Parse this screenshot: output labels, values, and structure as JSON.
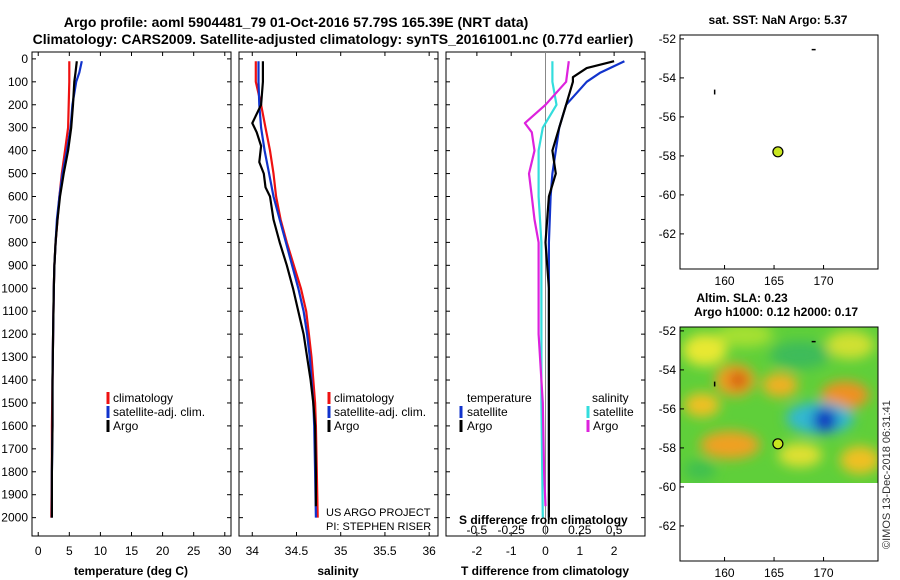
{
  "header": {
    "title_line1": "Argo profile: aoml 5904481_79 01-Oct-2016 57.79S 165.39E (NRT data)",
    "title_line2": "Climatology: CARS2009. Satellite-adjusted climatology: synTS_20161001.nc (0.77d earlier)"
  },
  "colors": {
    "climatology": "#ee1111",
    "satellite": "#1133cc",
    "argo": "#000000",
    "salinity_satellite": "#33dddd",
    "salinity_argo": "#dd22dd",
    "marker": "#c8e620"
  },
  "depth_ticks": [
    "0",
    "100",
    "200",
    "300",
    "400",
    "500",
    "600",
    "700",
    "800",
    "900",
    "1000",
    "1100",
    "1200",
    "1300",
    "1400",
    "1500",
    "1600",
    "1700",
    "1800",
    "1900",
    "2000"
  ],
  "chart_data": [
    {
      "type": "line",
      "name": "temperature-profile",
      "xlabel": "temperature (deg C)",
      "xlim": [
        -1,
        31
      ],
      "xticks": [
        0,
        5,
        10,
        15,
        20,
        25,
        30
      ],
      "xtick_labels": [
        "0",
        "5",
        "10",
        "15",
        "20",
        "25",
        "30"
      ],
      "ylim": [
        2080,
        -30
      ],
      "ylabel": "depth",
      "legend": [
        "climatology",
        "satellite-adj. clim.",
        "Argo"
      ],
      "series": [
        {
          "name": "climatology",
          "color": "#ee1111",
          "points": [
            [
              5.0,
              10
            ],
            [
              5.0,
              100
            ],
            [
              4.9,
              200
            ],
            [
              4.8,
              300
            ],
            [
              4.3,
              400
            ],
            [
              3.8,
              500
            ],
            [
              3.4,
              600
            ],
            [
              3.1,
              700
            ],
            [
              2.8,
              800
            ],
            [
              2.6,
              900
            ],
            [
              2.5,
              1000
            ],
            [
              2.4,
              1200
            ],
            [
              2.3,
              1400
            ],
            [
              2.2,
              1600
            ],
            [
              2.2,
              1800
            ],
            [
              2.1,
              2000
            ]
          ]
        },
        {
          "name": "satellite-adj. clim.",
          "color": "#1133cc",
          "points": [
            [
              7.0,
              10
            ],
            [
              6.6,
              60
            ],
            [
              6.1,
              100
            ],
            [
              5.5,
              200
            ],
            [
              5.2,
              300
            ],
            [
              4.6,
              400
            ],
            [
              3.9,
              500
            ],
            [
              3.4,
              600
            ],
            [
              3.0,
              700
            ],
            [
              2.8,
              800
            ],
            [
              2.6,
              900
            ],
            [
              2.5,
              1000
            ],
            [
              2.4,
              1200
            ],
            [
              2.3,
              1400
            ],
            [
              2.3,
              1600
            ],
            [
              2.2,
              1800
            ],
            [
              2.2,
              2000
            ]
          ]
        },
        {
          "name": "Argo",
          "color": "#000000",
          "points": [
            [
              6.2,
              10
            ],
            [
              6.0,
              60
            ],
            [
              5.8,
              100
            ],
            [
              5.6,
              200
            ],
            [
              5.3,
              300
            ],
            [
              4.8,
              400
            ],
            [
              4.1,
              500
            ],
            [
              3.5,
              600
            ],
            [
              3.1,
              700
            ],
            [
              2.8,
              800
            ],
            [
              2.6,
              900
            ],
            [
              2.5,
              1000
            ],
            [
              2.4,
              1200
            ],
            [
              2.3,
              1400
            ],
            [
              2.3,
              1600
            ],
            [
              2.2,
              1800
            ],
            [
              2.2,
              2000
            ]
          ]
        }
      ]
    },
    {
      "type": "line",
      "name": "salinity-profile",
      "xlabel": "salinity",
      "xlim": [
        33.85,
        36.1
      ],
      "xticks": [
        34,
        34.5,
        35,
        35.5,
        36
      ],
      "xtick_labels": [
        "34",
        "34.5",
        "35",
        "35.5",
        "36"
      ],
      "ylim": [
        2080,
        -30
      ],
      "legend": [
        "climatology",
        "satellite-adj. clim.",
        "Argo"
      ],
      "credit": [
        "US ARGO PROJECT",
        "PI: STEPHEN RISER"
      ],
      "series": [
        {
          "name": "climatology",
          "color": "#ee1111",
          "points": [
            [
              34.04,
              10
            ],
            [
              34.04,
              100
            ],
            [
              34.1,
              200
            ],
            [
              34.15,
              300
            ],
            [
              34.2,
              400
            ],
            [
              34.24,
              500
            ],
            [
              34.27,
              600
            ],
            [
              34.32,
              700
            ],
            [
              34.39,
              800
            ],
            [
              34.47,
              900
            ],
            [
              34.55,
              1000
            ],
            [
              34.61,
              1100
            ],
            [
              34.64,
              1200
            ],
            [
              34.67,
              1300
            ],
            [
              34.69,
              1400
            ],
            [
              34.71,
              1500
            ],
            [
              34.72,
              1600
            ],
            [
              34.73,
              1800
            ],
            [
              34.74,
              2000
            ]
          ]
        },
        {
          "name": "satellite-adj. clim.",
          "color": "#1133cc",
          "points": [
            [
              34.07,
              10
            ],
            [
              34.07,
              100
            ],
            [
              34.08,
              200
            ],
            [
              34.1,
              300
            ],
            [
              34.14,
              400
            ],
            [
              34.19,
              500
            ],
            [
              34.24,
              600
            ],
            [
              34.31,
              700
            ],
            [
              34.38,
              800
            ],
            [
              34.45,
              900
            ],
            [
              34.52,
              1000
            ],
            [
              34.58,
              1100
            ],
            [
              34.62,
              1200
            ],
            [
              34.65,
              1300
            ],
            [
              34.67,
              1400
            ],
            [
              34.69,
              1500
            ],
            [
              34.7,
              1600
            ],
            [
              34.71,
              1800
            ],
            [
              34.72,
              2000
            ]
          ]
        },
        {
          "name": "Argo",
          "color": "#000000",
          "points": [
            [
              34.12,
              10
            ],
            [
              34.12,
              100
            ],
            [
              34.1,
              200
            ],
            [
              34.0,
              280
            ],
            [
              34.05,
              320
            ],
            [
              34.1,
              380
            ],
            [
              34.08,
              450
            ],
            [
              34.13,
              500
            ],
            [
              34.15,
              560
            ],
            [
              34.2,
              600
            ],
            [
              34.24,
              700
            ],
            [
              34.31,
              800
            ],
            [
              34.39,
              900
            ],
            [
              34.46,
              1000
            ],
            [
              34.52,
              1100
            ],
            [
              34.58,
              1200
            ],
            [
              34.62,
              1300
            ],
            [
              34.66,
              1400
            ],
            [
              34.69,
              1500
            ],
            [
              34.71,
              1600
            ],
            [
              34.72,
              1800
            ],
            [
              34.72,
              1950
            ]
          ]
        }
      ]
    },
    {
      "type": "line",
      "name": "difference-profile",
      "xlabel": "T difference from climatology",
      "xlabel_top": "S difference from climatology",
      "xlim": [
        -2.9,
        2.9
      ],
      "xticks": [
        -2,
        -1,
        0,
        1,
        2
      ],
      "xtick_labels": [
        "-2",
        "-1",
        "0",
        "1",
        "2"
      ],
      "top_ticks": [
        -0.5,
        -0.25,
        0,
        0.25,
        0.5
      ],
      "top_tick_labels": [
        "-0.5",
        "-0.25",
        "0",
        "0.25",
        "0.5"
      ],
      "s_scale": 4,
      "ylim": [
        2080,
        -30
      ],
      "legend_temperature": {
        "title": "temperature",
        "entries": [
          "satellite",
          "Argo"
        ]
      },
      "legend_salinity": {
        "title": "salinity",
        "entries": [
          "satellite",
          "Argo"
        ]
      },
      "series": [
        {
          "name": "temperature satellite",
          "color": "#1133cc",
          "points": [
            [
              2.3,
              10
            ],
            [
              1.6,
              60
            ],
            [
              1.2,
              100
            ],
            [
              0.6,
              200
            ],
            [
              0.4,
              300
            ],
            [
              0.3,
              400
            ],
            [
              0.2,
              500
            ],
            [
              0.15,
              600
            ],
            [
              0.1,
              800
            ],
            [
              0.1,
              1000
            ],
            [
              0.1,
              1500
            ],
            [
              0.1,
              2000
            ]
          ]
        },
        {
          "name": "temperature Argo",
          "color": "#000000",
          "points": [
            [
              2.0,
              10
            ],
            [
              1.2,
              40
            ],
            [
              0.8,
              80
            ],
            [
              0.8,
              100
            ],
            [
              0.6,
              200
            ],
            [
              0.4,
              300
            ],
            [
              0.2,
              400
            ],
            [
              0.3,
              500
            ],
            [
              0.1,
              600
            ],
            [
              0.0,
              800
            ],
            [
              0.1,
              1000
            ],
            [
              0.1,
              1500
            ],
            [
              0.1,
              2000
            ]
          ]
        },
        {
          "name": "salinity satellite",
          "color": "#33dddd",
          "points": [
            [
              0.05,
              10
            ],
            [
              0.05,
              100
            ],
            [
              0.08,
              200
            ],
            [
              -0.02,
              300
            ],
            [
              -0.05,
              400
            ],
            [
              -0.05,
              500
            ],
            [
              -0.05,
              600
            ],
            [
              -0.03,
              800
            ],
            [
              -0.03,
              1000
            ],
            [
              -0.03,
              1500
            ],
            [
              -0.02,
              2000
            ]
          ]
        },
        {
          "name": "salinity Argo",
          "color": "#dd22dd",
          "points": [
            [
              0.17,
              10
            ],
            [
              0.15,
              100
            ],
            [
              0.0,
              200
            ],
            [
              -0.15,
              280
            ],
            [
              -0.1,
              320
            ],
            [
              -0.08,
              400
            ],
            [
              -0.12,
              500
            ],
            [
              -0.1,
              600
            ],
            [
              -0.08,
              700
            ],
            [
              -0.05,
              800
            ],
            [
              -0.05,
              1000
            ],
            [
              -0.05,
              1200
            ],
            [
              -0.02,
              1500
            ],
            [
              -0.01,
              1800
            ],
            [
              0.0,
              1950
            ]
          ]
        }
      ]
    },
    {
      "type": "scatter",
      "name": "sst-map",
      "title": "sat. SST: NaN Argo: 5.37",
      "xlim": [
        155.5,
        175.5
      ],
      "ylim": [
        -63.8,
        -51.8
      ],
      "xticks": [
        160,
        165,
        170
      ],
      "xtick_labels": [
        "160",
        "165",
        "170"
      ],
      "yticks": [
        -52,
        -54,
        -56,
        -58,
        -60,
        -62
      ],
      "ytick_labels": [
        "-52",
        "-54",
        "-56",
        "-58",
        "-60",
        "-62"
      ],
      "argo_position": [
        165.39,
        -57.79
      ]
    },
    {
      "type": "heatmap",
      "name": "sla-map",
      "title_line1": "Altim. SLA: 0.23",
      "title_line2": "Argo h1000: 0.12 h2000: 0.17",
      "xlim": [
        155.5,
        175.5
      ],
      "ylim": [
        -63.8,
        -51.8
      ],
      "data_extent_lat": [
        -60,
        -52
      ],
      "xticks": [
        160,
        165,
        170
      ],
      "xtick_labels": [
        "160",
        "165",
        "170"
      ],
      "yticks": [
        -52,
        -54,
        -56,
        -58,
        -60,
        -62
      ],
      "ytick_labels": [
        "-52",
        "-54",
        "-56",
        "-58",
        "-60",
        "-62"
      ],
      "argo_position": [
        165.39,
        -57.79
      ]
    }
  ],
  "footer": {
    "credit": "©IMOS 13-Dec-2018 06:31:41"
  }
}
